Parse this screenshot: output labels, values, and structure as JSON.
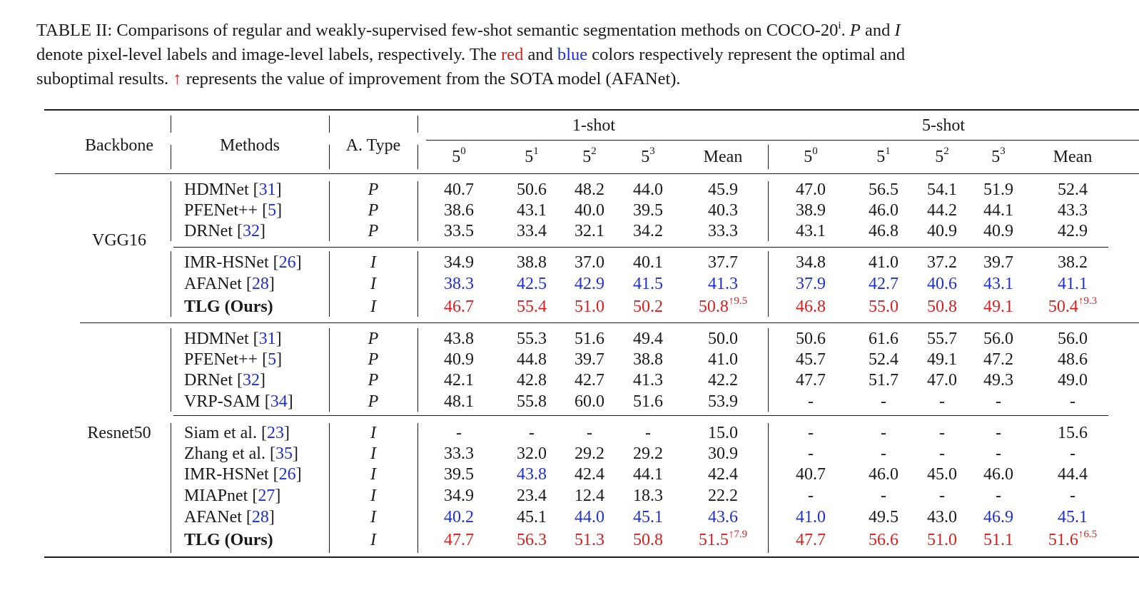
{
  "caption": {
    "l1_a": "TABLE II: Comparisons of regular and weakly-supervised few-shot semantic segmentation methods on COCO-20",
    "l1_sup": "i",
    "l1_b": ". ",
    "l1_P": "P",
    "l1_c": " and ",
    "l1_I": "I",
    "l2_a": "denote pixel-level labels and image-level labels, respectively. The ",
    "l2_red": "red",
    "l2_b": " and ",
    "l2_blue": "blue",
    "l2_c": " colors respectively represent the optimal and",
    "l3_arrow": "↑",
    "l3_a": "suboptimal results. ",
    "l3_b": " represents the value of improvement from the SOTA model (AFANet)."
  },
  "header": {
    "backbone": "Backbone",
    "methods": "Methods",
    "atype": "A. Type",
    "one_shot": "1-shot",
    "five_shot": "5-shot",
    "fold_base": "5",
    "folds": [
      "0",
      "1",
      "2",
      "3"
    ],
    "mean": "Mean"
  },
  "backbones": [
    "VGG16",
    "Resnet50"
  ],
  "rows": [
    {
      "method": "HDMNet",
      "ref": "31",
      "type": "P",
      "v": [
        "40.7",
        "50.6",
        "48.2",
        "44.0",
        "45.9",
        "47.0",
        "56.5",
        "54.1",
        "51.9",
        "52.4"
      ],
      "c": [
        "",
        "",
        "",
        "",
        "",
        "",
        "",
        "",
        "",
        ""
      ]
    },
    {
      "method": "PFENet++",
      "ref": "5",
      "type": "P",
      "v": [
        "38.6",
        "43.1",
        "40.0",
        "39.5",
        "40.3",
        "38.9",
        "46.0",
        "44.2",
        "44.1",
        "43.3"
      ],
      "c": [
        "",
        "",
        "",
        "",
        "",
        "",
        "",
        "",
        "",
        ""
      ]
    },
    {
      "method": "DRNet",
      "ref": "32",
      "type": "P",
      "v": [
        "33.5",
        "33.4",
        "32.1",
        "34.2",
        "33.3",
        "43.1",
        "46.8",
        "40.9",
        "40.9",
        "42.9"
      ],
      "c": [
        "",
        "",
        "",
        "",
        "",
        "",
        "",
        "",
        "",
        ""
      ]
    },
    {
      "method": "IMR-HSNet",
      "ref": "26",
      "type": "I",
      "v": [
        "34.9",
        "38.8",
        "37.0",
        "40.1",
        "37.7",
        "34.8",
        "41.0",
        "37.2",
        "39.7",
        "38.2"
      ],
      "c": [
        "",
        "",
        "",
        "",
        "",
        "",
        "",
        "",
        "",
        ""
      ]
    },
    {
      "method": "AFANet",
      "ref": "28",
      "type": "I",
      "v": [
        "38.3",
        "42.5",
        "42.9",
        "41.5",
        "41.3",
        "37.9",
        "42.7",
        "40.6",
        "43.1",
        "41.1"
      ],
      "c": [
        "b",
        "b",
        "b",
        "b",
        "b",
        "b",
        "b",
        "b",
        "b",
        "b"
      ]
    },
    {
      "method": "TLG (Ours)",
      "ref": "",
      "type": "I",
      "bold": true,
      "v": [
        "46.7",
        "55.4",
        "51.0",
        "50.2",
        "50.8",
        "46.8",
        "55.0",
        "50.8",
        "49.1",
        "50.4"
      ],
      "c": [
        "r",
        "r",
        "r",
        "r",
        "r",
        "r",
        "r",
        "r",
        "r",
        "r"
      ],
      "imp1": "↑9.5",
      "imp2": "↑9.3"
    },
    {
      "method": "HDMNet",
      "ref": "31",
      "type": "P",
      "v": [
        "43.8",
        "55.3",
        "51.6",
        "49.4",
        "50.0",
        "50.6",
        "61.6",
        "55.7",
        "56.0",
        "56.0"
      ],
      "c": [
        "",
        "",
        "",
        "",
        "",
        "",
        "",
        "",
        "",
        ""
      ]
    },
    {
      "method": "PFENet++",
      "ref": "5",
      "type": "P",
      "v": [
        "40.9",
        "44.8",
        "39.7",
        "38.8",
        "41.0",
        "45.7",
        "52.4",
        "49.1",
        "47.2",
        "48.6"
      ],
      "c": [
        "",
        "",
        "",
        "",
        "",
        "",
        "",
        "",
        "",
        ""
      ]
    },
    {
      "method": "DRNet",
      "ref": "32",
      "type": "P",
      "v": [
        "42.1",
        "42.8",
        "42.7",
        "41.3",
        "42.2",
        "47.7",
        "51.7",
        "47.0",
        "49.3",
        "49.0"
      ],
      "c": [
        "",
        "",
        "",
        "",
        "",
        "",
        "",
        "",
        "",
        ""
      ]
    },
    {
      "method": "VRP-SAM",
      "ref": "34",
      "type": "P",
      "v": [
        "48.1",
        "55.8",
        "60.0",
        "51.6",
        "53.9",
        "-",
        "-",
        "-",
        "-",
        "-"
      ],
      "c": [
        "",
        "",
        "",
        "",
        "",
        "",
        "",
        "",
        "",
        ""
      ]
    },
    {
      "method": "Siam et al.",
      "ref": "23",
      "type": "I",
      "v": [
        "-",
        "-",
        "-",
        "-",
        "15.0",
        "-",
        "-",
        "-",
        "-",
        "15.6"
      ],
      "c": [
        "",
        "",
        "",
        "",
        "",
        "",
        "",
        "",
        "",
        ""
      ]
    },
    {
      "method": "Zhang et al.",
      "ref": "35",
      "type": "I",
      "v": [
        "33.3",
        "32.0",
        "29.2",
        "29.2",
        "30.9",
        "-",
        "-",
        "-",
        "-",
        "-"
      ],
      "c": [
        "",
        "",
        "",
        "",
        "",
        "",
        "",
        "",
        "",
        ""
      ]
    },
    {
      "method": "IMR-HSNet",
      "ref": "26",
      "type": "I",
      "v": [
        "39.5",
        "43.8",
        "42.4",
        "44.1",
        "42.4",
        "40.7",
        "46.0",
        "45.0",
        "46.0",
        "44.4"
      ],
      "c": [
        "",
        "b",
        "",
        "",
        "",
        "",
        "",
        "",
        "",
        ""
      ]
    },
    {
      "method": "MIAPnet",
      "ref": "27",
      "type": "I",
      "v": [
        "34.9",
        "23.4",
        "12.4",
        "18.3",
        "22.2",
        "-",
        "-",
        "-",
        "-",
        "-"
      ],
      "c": [
        "",
        "",
        "",
        "",
        "",
        "",
        "",
        "",
        "",
        ""
      ]
    },
    {
      "method": "AFANet",
      "ref": "28",
      "type": "I",
      "v": [
        "40.2",
        "45.1",
        "44.0",
        "45.1",
        "43.6",
        "41.0",
        "49.5",
        "43.0",
        "46.9",
        "45.1"
      ],
      "c": [
        "b",
        "",
        "b",
        "b",
        "b",
        "b",
        "",
        "",
        "b",
        "b"
      ]
    },
    {
      "method": "TLG (Ours)",
      "ref": "",
      "type": "I",
      "bold": true,
      "v": [
        "47.7",
        "56.3",
        "51.3",
        "50.8",
        "51.5",
        "47.7",
        "56.6",
        "51.0",
        "51.1",
        "51.6"
      ],
      "c": [
        "r",
        "r",
        "r",
        "r",
        "r",
        "r",
        "r",
        "r",
        "r",
        "r"
      ],
      "imp1": "↑7.9",
      "imp2": "↑6.5"
    }
  ]
}
